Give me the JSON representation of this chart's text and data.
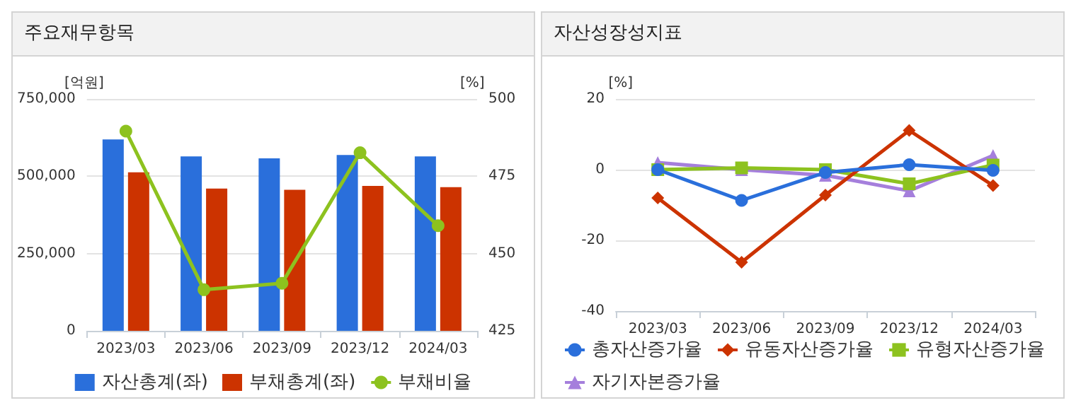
{
  "chart_data": [
    {
      "type": "bar",
      "title": "주요재무항목",
      "ylabel": "[억원]",
      "y2label": "[%]",
      "categories": [
        "2023/03",
        "2023/06",
        "2023/09",
        "2023/12",
        "2024/03"
      ],
      "series": [
        {
          "name": "자산총계(좌)",
          "color": "#2a6fdb",
          "values": [
            619000,
            564000,
            558000,
            569000,
            564000
          ]
        },
        {
          "name": "부채총계(좌)",
          "color": "#cc3300",
          "values": [
            513000,
            460000,
            456000,
            469000,
            465000
          ]
        },
        {
          "name": "부채비율",
          "type": "line",
          "axis": "y2",
          "color": "#8dc21f",
          "marker": "circle",
          "values": [
            489.6,
            438.3,
            440.4,
            482.6,
            459
          ]
        }
      ],
      "ylim": [
        0,
        750000
      ],
      "yticks": [
        {
          "value": 0,
          "label": "0"
        },
        {
          "value": 250000,
          "label": "250,000"
        },
        {
          "value": 500000,
          "label": "500,000"
        },
        {
          "value": 750000,
          "label": "750,000"
        }
      ],
      "y2lim": [
        425,
        500
      ],
      "y2ticks": [
        425,
        450,
        475,
        500
      ],
      "grid": "y",
      "legend": "bottom"
    },
    {
      "type": "line",
      "title": "자산성장성지표",
      "ylabel": "[%]",
      "categories": [
        "2023/03",
        "2023/06",
        "2023/09",
        "2023/12",
        "2024/03"
      ],
      "series": [
        {
          "name": "총자산증가율",
          "color": "#2a6fdb",
          "marker": "circle",
          "values": [
            0,
            -8.7,
            -0.8,
            1.4,
            -0.2
          ]
        },
        {
          "name": "유동자산증가율",
          "color": "#cc3300",
          "marker": "diamond",
          "values": [
            -8,
            -26.2,
            -7.2,
            11.1,
            -4.5
          ]
        },
        {
          "name": "유형자산증가율",
          "color": "#8dc21f",
          "marker": "square",
          "values": [
            0,
            0.5,
            0,
            -4,
            1.3
          ]
        },
        {
          "name": "자기자본증가율",
          "color": "#a57fdc",
          "marker": "triangle",
          "values": [
            2,
            0,
            -1.6,
            -6,
            4
          ]
        }
      ],
      "ylim": [
        -40,
        20
      ],
      "yticks": [
        -40,
        -20,
        0,
        20
      ],
      "grid": "y",
      "legend": "bottom"
    }
  ]
}
